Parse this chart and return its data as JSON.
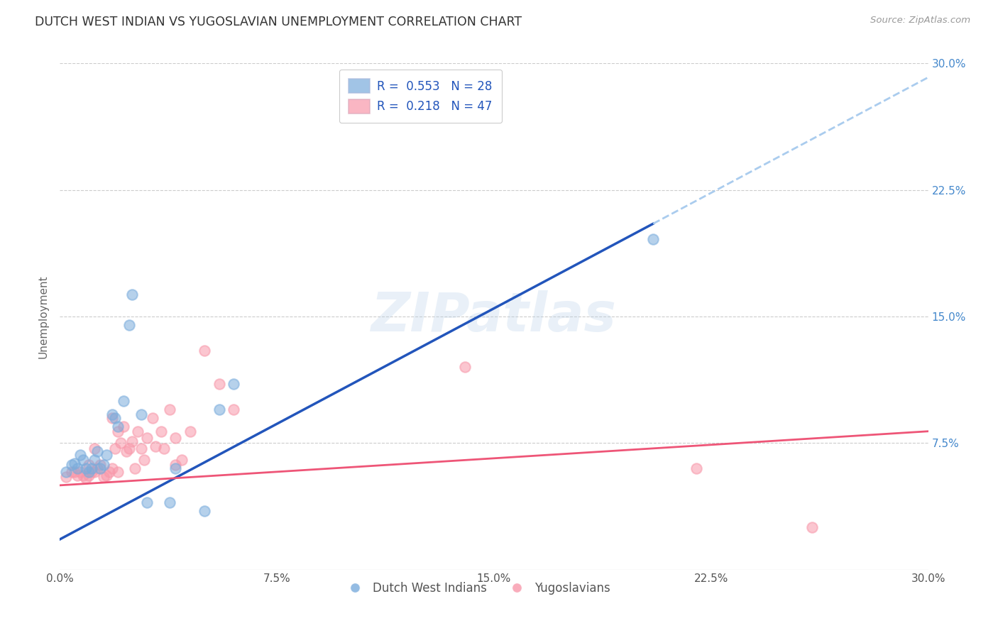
{
  "title": "DUTCH WEST INDIAN VS YUGOSLAVIAN UNEMPLOYMENT CORRELATION CHART",
  "source": "Source: ZipAtlas.com",
  "ylabel": "Unemployment",
  "xlim": [
    0.0,
    0.3
  ],
  "ylim": [
    0.0,
    0.3
  ],
  "xtick_labels": [
    "0.0%",
    "7.5%",
    "15.0%",
    "22.5%",
    "30.0%"
  ],
  "xtick_vals": [
    0.0,
    0.075,
    0.15,
    0.225,
    0.3
  ],
  "ytick_vals": [
    0.075,
    0.15,
    0.225,
    0.3
  ],
  "right_ytick_labels": [
    "7.5%",
    "15.0%",
    "22.5%",
    "30.0%"
  ],
  "right_ytick_vals": [
    0.075,
    0.15,
    0.225,
    0.3
  ],
  "blue_R": 0.553,
  "blue_N": 28,
  "pink_R": 0.218,
  "pink_N": 47,
  "legend1_label": "Dutch West Indians",
  "legend2_label": "Yugoslavians",
  "blue_color": "#7AACDC",
  "pink_color": "#F898AA",
  "blue_line_color": "#2255BB",
  "pink_line_color": "#EE5577",
  "blue_line_dash_color": "#AACCEE",
  "watermark": "ZIPatlas",
  "blue_line_x0": 0.0,
  "blue_line_y0": 0.018,
  "blue_line_x1": 0.205,
  "blue_line_y1": 0.205,
  "blue_line_solid_x_end": 0.205,
  "blue_line_dash_x_end": 0.3,
  "pink_line_x0": 0.0,
  "pink_line_y0": 0.05,
  "pink_line_x1": 0.3,
  "pink_line_y1": 0.082,
  "blue_scatter_x": [
    0.002,
    0.004,
    0.005,
    0.006,
    0.007,
    0.008,
    0.009,
    0.01,
    0.011,
    0.012,
    0.013,
    0.014,
    0.015,
    0.016,
    0.018,
    0.019,
    0.02,
    0.022,
    0.024,
    0.025,
    0.028,
    0.03,
    0.038,
    0.04,
    0.05,
    0.055,
    0.06,
    0.205
  ],
  "blue_scatter_y": [
    0.058,
    0.062,
    0.063,
    0.06,
    0.068,
    0.065,
    0.06,
    0.058,
    0.06,
    0.065,
    0.07,
    0.06,
    0.062,
    0.068,
    0.092,
    0.09,
    0.085,
    0.1,
    0.145,
    0.163,
    0.092,
    0.04,
    0.04,
    0.06,
    0.035,
    0.095,
    0.11,
    0.196
  ],
  "pink_scatter_x": [
    0.002,
    0.004,
    0.005,
    0.006,
    0.007,
    0.008,
    0.009,
    0.01,
    0.01,
    0.011,
    0.012,
    0.012,
    0.013,
    0.014,
    0.015,
    0.016,
    0.017,
    0.018,
    0.018,
    0.019,
    0.02,
    0.02,
    0.021,
    0.022,
    0.023,
    0.024,
    0.025,
    0.026,
    0.027,
    0.028,
    0.029,
    0.03,
    0.032,
    0.033,
    0.035,
    0.036,
    0.038,
    0.04,
    0.04,
    0.042,
    0.045,
    0.05,
    0.055,
    0.06,
    0.14,
    0.22,
    0.26
  ],
  "pink_scatter_y": [
    0.055,
    0.058,
    0.058,
    0.056,
    0.058,
    0.056,
    0.054,
    0.056,
    0.062,
    0.058,
    0.058,
    0.072,
    0.06,
    0.062,
    0.055,
    0.056,
    0.058,
    0.06,
    0.09,
    0.072,
    0.058,
    0.082,
    0.075,
    0.085,
    0.07,
    0.072,
    0.076,
    0.06,
    0.082,
    0.072,
    0.065,
    0.078,
    0.09,
    0.073,
    0.082,
    0.072,
    0.095,
    0.062,
    0.078,
    0.065,
    0.082,
    0.13,
    0.11,
    0.095,
    0.12,
    0.06,
    0.025
  ]
}
